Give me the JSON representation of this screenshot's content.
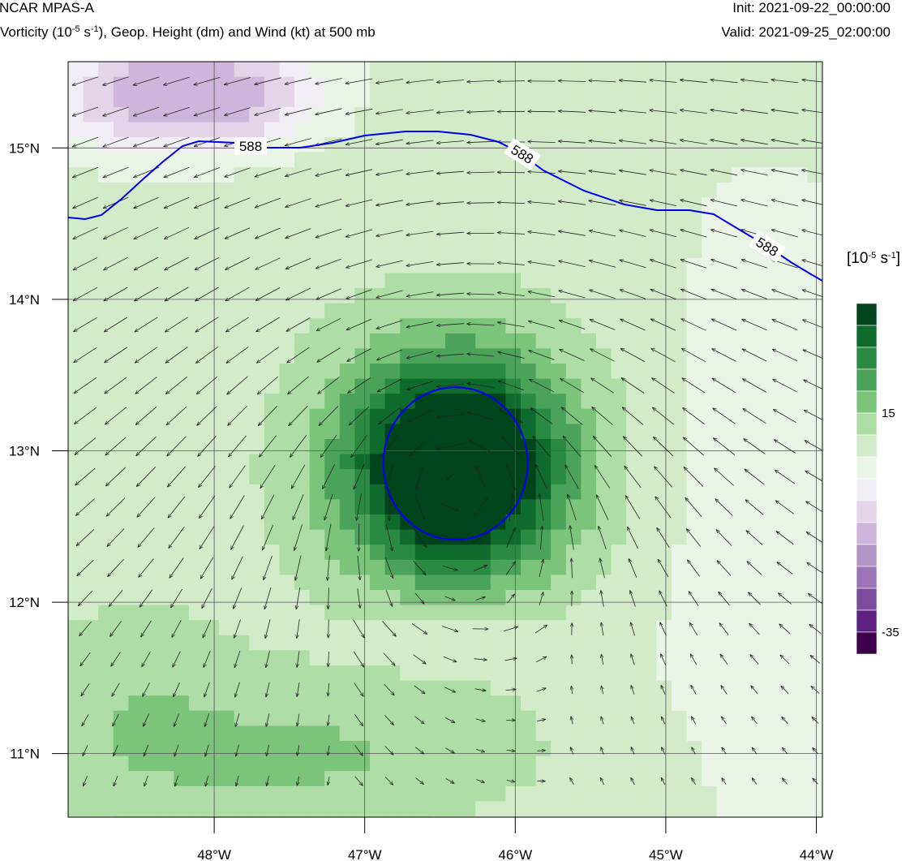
{
  "header": {
    "title_left": "NCAR MPAS-A",
    "subtitle_pre": "Vorticity (10",
    "subtitle_sup1": "-5",
    "subtitle_mid": " s",
    "subtitle_sup2": "-1",
    "subtitle_post": "), Geop. Height (dm) and Wind (kt) at 500 mb",
    "init": "Init: 2021-09-22_00:00:00",
    "valid": "Valid: 2021-09-25_02:00:00"
  },
  "map": {
    "lon_range": [
      -48.97,
      -43.96
    ],
    "lat_range": [
      10.58,
      15.57
    ],
    "lon_ticks": [
      {
        "value": -48,
        "label": "48°W"
      },
      {
        "value": -47,
        "label": "47°W"
      },
      {
        "value": -46,
        "label": "46°W"
      },
      {
        "value": -45,
        "label": "45°W"
      },
      {
        "value": -44,
        "label": "44°W"
      }
    ],
    "lat_ticks": [
      {
        "value": 15,
        "label": "15°N"
      },
      {
        "value": 14,
        "label": "14°N"
      },
      {
        "value": 13,
        "label": "13°N"
      },
      {
        "value": 12,
        "label": "12°N"
      },
      {
        "value": 11,
        "label": "11°N"
      }
    ],
    "contour_label": "588",
    "vortex_center": {
      "lon": -46.4,
      "lat": 12.9
    },
    "contour_color": "#0000ee"
  },
  "colorbar": {
    "unit_pre": "[10",
    "unit_sup1": "-5",
    "unit_mid": " s",
    "unit_sup2": "-1",
    "unit_post": "]",
    "colors": [
      "#00441b",
      "#0f6b2d",
      "#2a8a41",
      "#4ba35a",
      "#7cc47a",
      "#aedda5",
      "#d2ecc9",
      "#ebf5e7",
      "#f2eef5",
      "#e4d4e9",
      "#cfb4dc",
      "#b295c6",
      "#9a74b5",
      "#7a4c9b",
      "#5e2181",
      "#3f004b"
    ],
    "labels": [
      {
        "text": "15",
        "after_box": 5
      },
      {
        "text": "-35",
        "after_box": 15
      }
    ]
  }
}
